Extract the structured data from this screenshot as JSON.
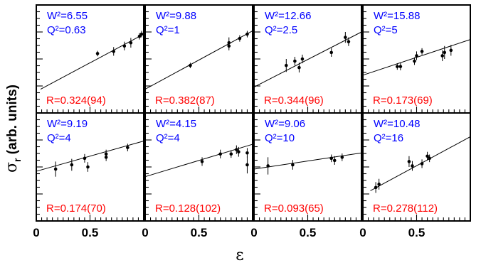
{
  "chart_data": {
    "type": "scatter",
    "x_label": "ε",
    "y_label_main": "σ",
    "y_label_sub": "r",
    "y_label_rest": " (arb. units)",
    "x_ticks": [
      "0",
      "0.5",
      "0",
      "0.5",
      "0",
      "0.5",
      "0",
      "0.5"
    ],
    "xlim": [
      0,
      1
    ],
    "panels": [
      {
        "w2": "W²=6.55",
        "q2": "Q²=0.63",
        "r": "R=0.324(94)",
        "points": [
          {
            "x": 0.57,
            "y": 0.55,
            "e": 0.025
          },
          {
            "x": 0.72,
            "y": 0.57,
            "e": 0.04
          },
          {
            "x": 0.82,
            "y": 0.62,
            "e": 0.04
          },
          {
            "x": 0.88,
            "y": 0.65,
            "e": 0.045
          },
          {
            "x": 0.96,
            "y": 0.71,
            "e": 0.03
          },
          {
            "x": 0.98,
            "y": 0.73,
            "e": 0.03
          }
        ],
        "fit": [
          0.04,
          0.22,
          1.0,
          0.73
        ]
      },
      {
        "w2": "W²=9.88",
        "q2": "Q²=1",
        "r": "R=0.382(87)",
        "points": [
          {
            "x": 0.42,
            "y": 0.44,
            "e": 0.025
          },
          {
            "x": 0.78,
            "y": 0.65,
            "e": 0.05
          },
          {
            "x": 0.78,
            "y": 0.62,
            "e": 0.04
          },
          {
            "x": 0.88,
            "y": 0.69,
            "e": 0.03
          },
          {
            "x": 0.95,
            "y": 0.73,
            "e": 0.03
          }
        ],
        "fit": [
          0.0,
          0.22,
          1.0,
          0.76
        ]
      },
      {
        "w2": "W²=12.66",
        "q2": "Q²=2.5",
        "r": "R=0.344(96)",
        "points": [
          {
            "x": 0.3,
            "y": 0.44,
            "e": 0.06
          },
          {
            "x": 0.38,
            "y": 0.48,
            "e": 0.04
          },
          {
            "x": 0.42,
            "y": 0.42,
            "e": 0.045
          },
          {
            "x": 0.45,
            "y": 0.5,
            "e": 0.04
          },
          {
            "x": 0.72,
            "y": 0.56,
            "e": 0.04
          },
          {
            "x": 0.85,
            "y": 0.7,
            "e": 0.05
          },
          {
            "x": 0.88,
            "y": 0.66,
            "e": 0.04
          }
        ],
        "fit": [
          0.0,
          0.24,
          1.0,
          0.75
        ]
      },
      {
        "w2": "W²=15.88",
        "q2": "Q²=5",
        "r": "R=0.173(69)",
        "points": [
          {
            "x": 0.32,
            "y": 0.43,
            "e": 0.03
          },
          {
            "x": 0.35,
            "y": 0.43,
            "e": 0.035
          },
          {
            "x": 0.48,
            "y": 0.48,
            "e": 0.035
          },
          {
            "x": 0.5,
            "y": 0.53,
            "e": 0.04
          },
          {
            "x": 0.55,
            "y": 0.57,
            "e": 0.03
          },
          {
            "x": 0.74,
            "y": 0.53,
            "e": 0.05
          },
          {
            "x": 0.76,
            "y": 0.56,
            "e": 0.06
          },
          {
            "x": 0.82,
            "y": 0.58,
            "e": 0.05
          }
        ],
        "fit": [
          0.0,
          0.35,
          1.0,
          0.68
        ]
      },
      {
        "w2": "W²=9.19",
        "q2": "Q²=4",
        "r": "R=0.174(70)",
        "points": [
          {
            "x": 0.18,
            "y": 0.48,
            "e": 0.07
          },
          {
            "x": 0.33,
            "y": 0.52,
            "e": 0.055
          },
          {
            "x": 0.45,
            "y": 0.58,
            "e": 0.04
          },
          {
            "x": 0.48,
            "y": 0.5,
            "e": 0.045
          },
          {
            "x": 0.65,
            "y": 0.62,
            "e": 0.04
          },
          {
            "x": 0.65,
            "y": 0.59,
            "e": 0.035
          },
          {
            "x": 0.85,
            "y": 0.68,
            "e": 0.035
          }
        ],
        "fit": [
          0.0,
          0.46,
          1.0,
          0.74
        ]
      },
      {
        "w2": "W²=4.15",
        "q2": "Q²=4",
        "r": "R=0.128(102)",
        "points": [
          {
            "x": 0.53,
            "y": 0.55,
            "e": 0.04
          },
          {
            "x": 0.7,
            "y": 0.62,
            "e": 0.04
          },
          {
            "x": 0.8,
            "y": 0.62,
            "e": 0.035
          },
          {
            "x": 0.85,
            "y": 0.66,
            "e": 0.04
          },
          {
            "x": 0.87,
            "y": 0.64,
            "e": 0.045
          },
          {
            "x": 0.95,
            "y": 0.63,
            "e": 0.045
          },
          {
            "x": 0.95,
            "y": 0.52,
            "e": 0.08
          }
        ],
        "fit": [
          0.0,
          0.41,
          1.0,
          0.71
        ]
      },
      {
        "w2": "W²=9.06",
        "q2": "Q²=10",
        "r": "R=0.093(65)",
        "points": [
          {
            "x": 0.13,
            "y": 0.51,
            "e": 0.08
          },
          {
            "x": 0.36,
            "y": 0.52,
            "e": 0.045
          },
          {
            "x": 0.72,
            "y": 0.58,
            "e": 0.035
          },
          {
            "x": 0.75,
            "y": 0.56,
            "e": 0.04
          },
          {
            "x": 0.82,
            "y": 0.59,
            "e": 0.035
          }
        ],
        "fit": [
          0.0,
          0.48,
          1.0,
          0.63
        ]
      },
      {
        "w2": "W²=10.48",
        "q2": "Q²=16",
        "r": "R=0.278(112)",
        "points": [
          {
            "x": 0.12,
            "y": 0.31,
            "e": 0.05
          },
          {
            "x": 0.15,
            "y": 0.34,
            "e": 0.05
          },
          {
            "x": 0.43,
            "y": 0.55,
            "e": 0.05
          },
          {
            "x": 0.46,
            "y": 0.51,
            "e": 0.045
          },
          {
            "x": 0.55,
            "y": 0.53,
            "e": 0.04
          },
          {
            "x": 0.6,
            "y": 0.6,
            "e": 0.04
          },
          {
            "x": 0.62,
            "y": 0.58,
            "e": 0.035
          }
        ],
        "fit": [
          0.07,
          0.28,
          1.0,
          0.78
        ]
      }
    ]
  }
}
